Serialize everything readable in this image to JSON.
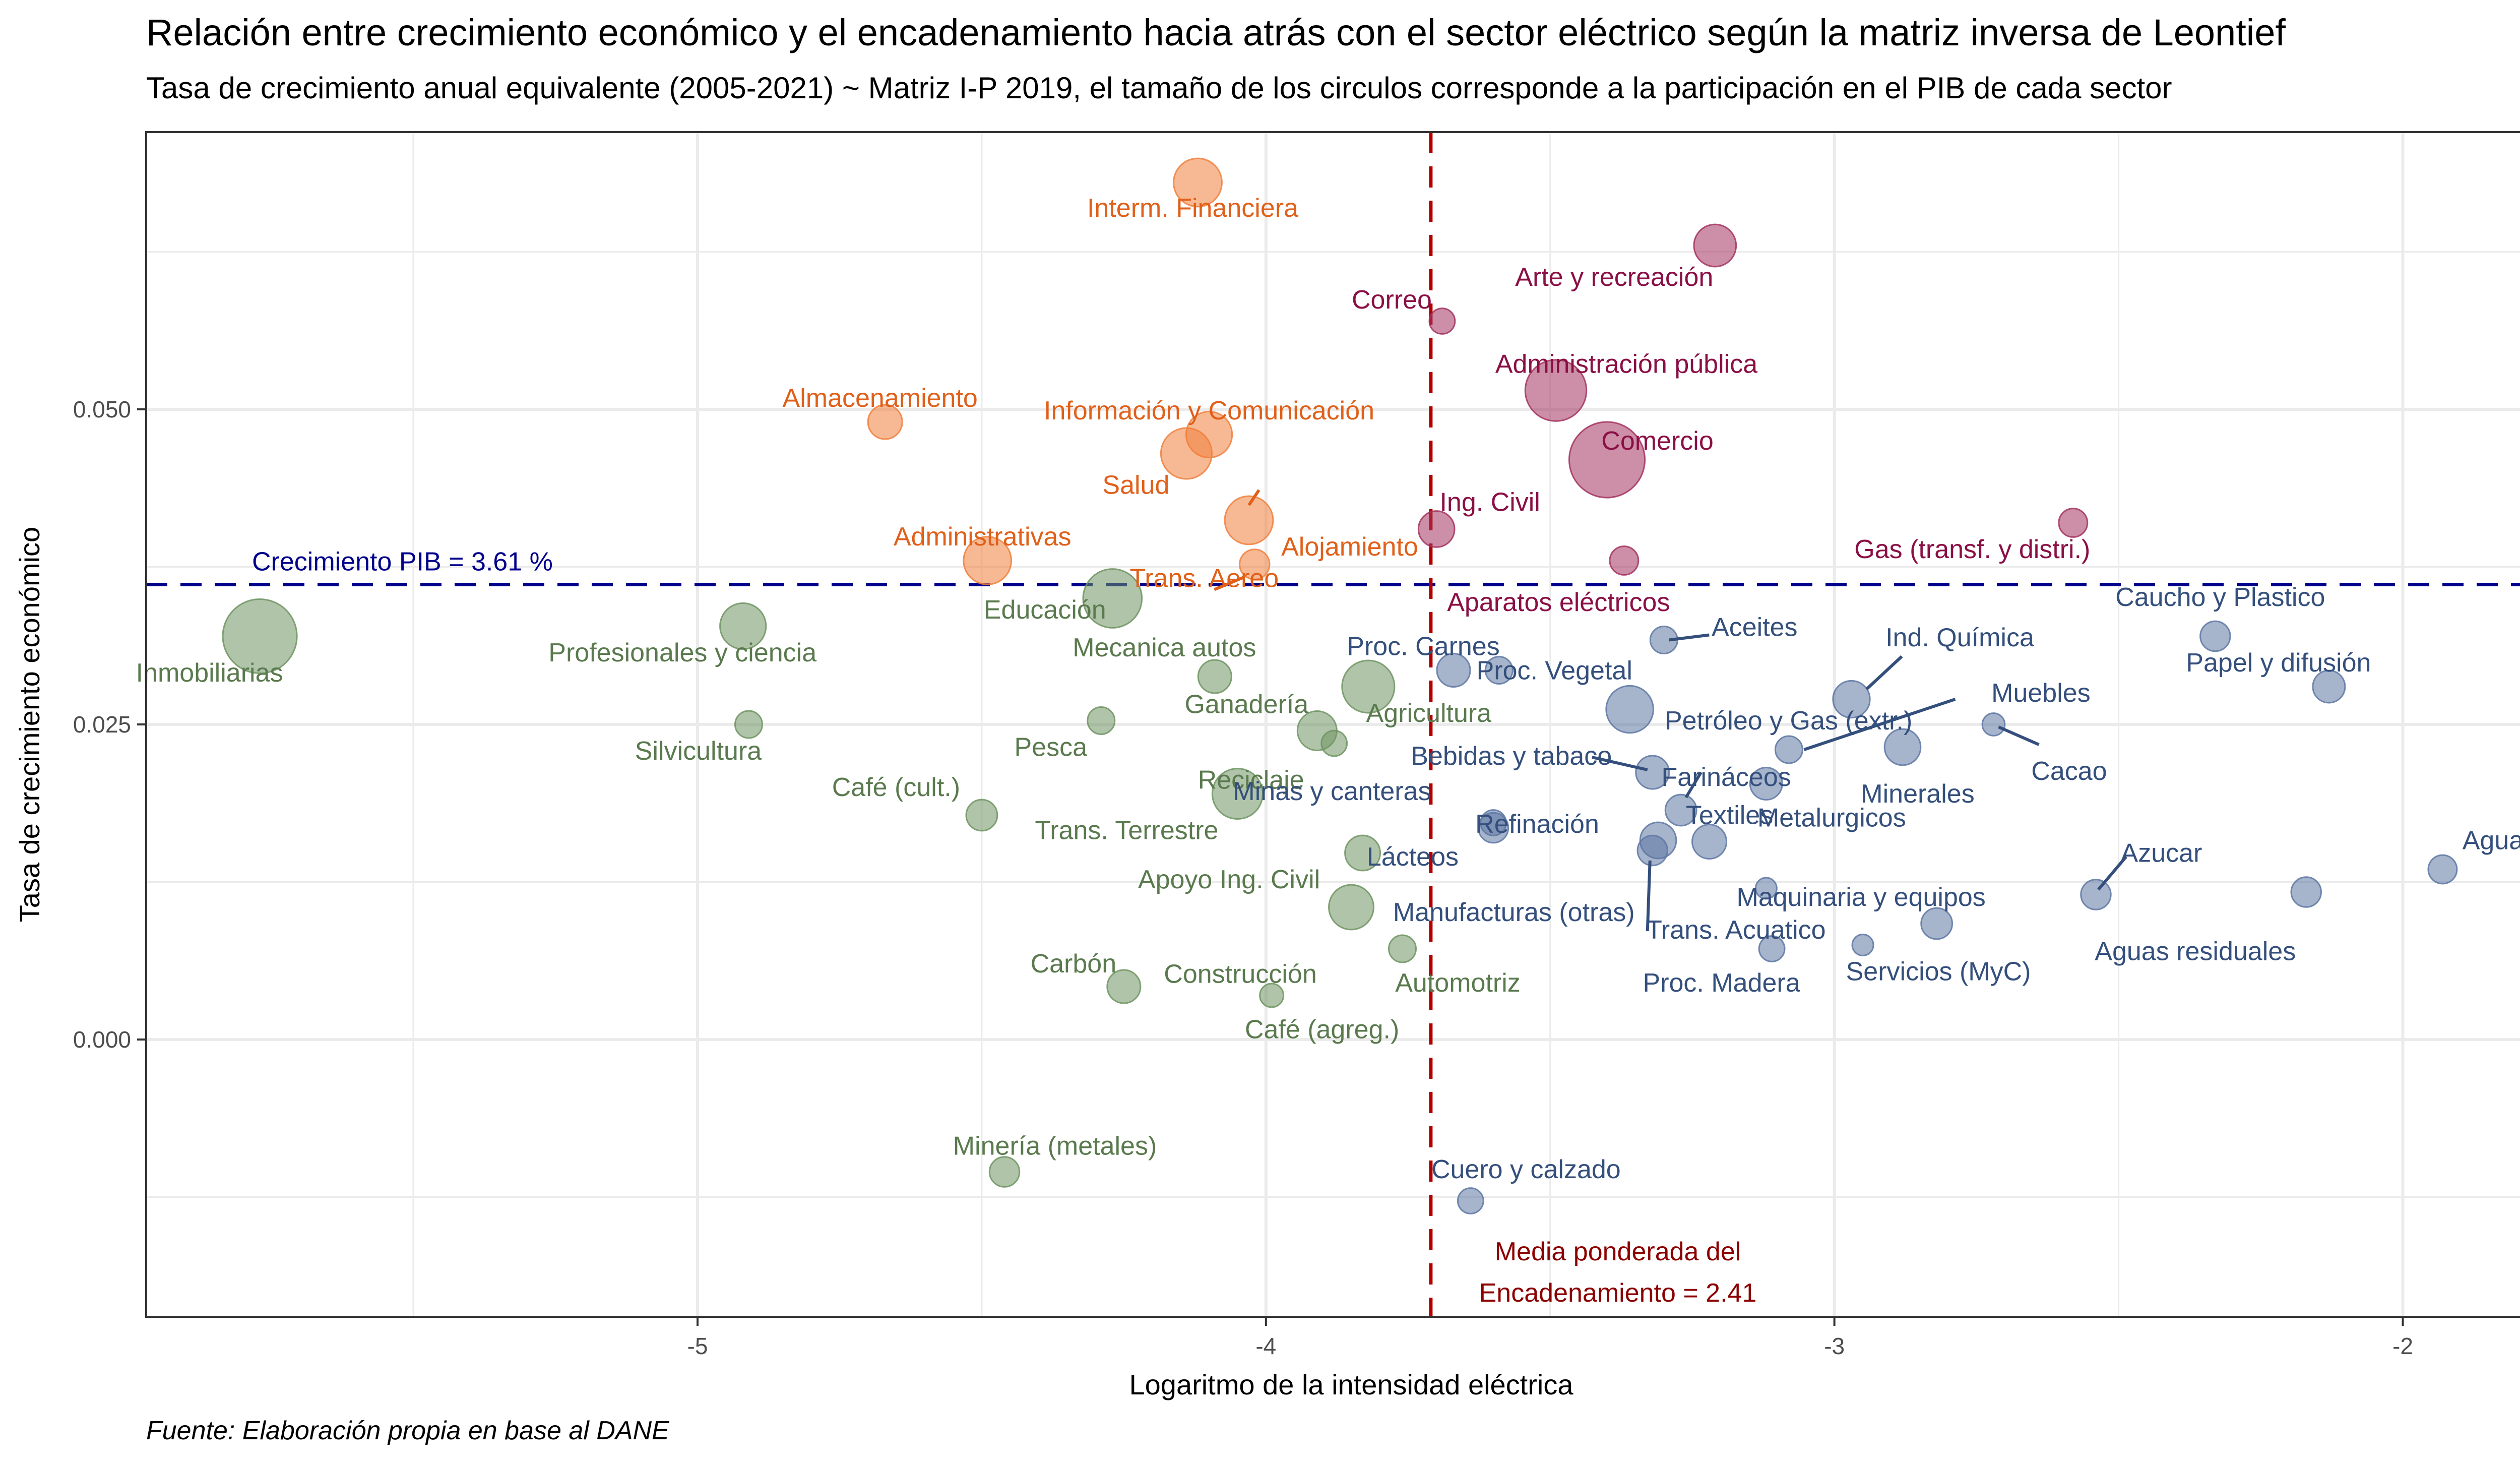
{
  "title": "Relación entre crecimiento económico y el encadenamiento hacia atrás con el sector eléctrico según la matriz inversa de Leontief",
  "subtitle": "Tasa de crecimiento anual equivalente (2005-2021) ~ Matriz I-P 2019, el tamaño de los circulos corresponde a la participación en el PIB de cada sector",
  "caption": "Fuente: Elaboración propia en base al DANE",
  "colors": {
    "orange": "#f07f3c",
    "orange_text": "#e0601a",
    "magenta": "#a3335f",
    "magenta_text": "#8a0f45",
    "green": "#6f9462",
    "green_text": "#5a7a4e",
    "blue": "#5d77a3",
    "blue_text": "#344f7c",
    "hline": "#00008b",
    "vline": "#b20000",
    "vline_text": "#8b0000",
    "grid": "#ebebeb"
  },
  "chart_data": {
    "type": "scatter",
    "title": "Relación entre crecimiento económico y el encadenamiento hacia atrás con el sector eléctrico según la matriz inversa de Leontief",
    "subtitle": "Tasa de crecimiento anual equivalente (2005-2021) ~ Matriz I-P 2019, el tamaño de los circulos corresponde a la participación en el PIB de cada sector",
    "xlabel": "Logaritmo de la intensidad eléctrica",
    "ylabel": "Tasa de crecimiento económico",
    "xlim": [
      -5.97,
      -1.73
    ],
    "ylim": [
      -0.022,
      0.072
    ],
    "x_ticks": [
      -5,
      -4,
      -3,
      -2
    ],
    "x_tick_labels": [
      "-5",
      "-4",
      "-3",
      "-2"
    ],
    "y_ticks": [
      0.0,
      0.025,
      0.05
    ],
    "y_tick_labels": [
      "0.000",
      "0.025",
      "0.050"
    ],
    "grid": true,
    "hline": {
      "y": 0.0361,
      "label": "Crecimiento PIB = 3.61 %"
    },
    "vline": {
      "x": -3.71,
      "label_line1": "Media ponderada del",
      "label_line2": "Encadenamiento = 2.41"
    },
    "points": [
      {
        "label": "Interm. Financiera",
        "x": -4.12,
        "y": 0.068,
        "size": 3.0,
        "group": "orange"
      },
      {
        "label": "Almacenamiento",
        "x": -4.67,
        "y": 0.049,
        "size": 1.0,
        "group": "orange"
      },
      {
        "label": "Información y Comunicación",
        "x": -4.1,
        "y": 0.048,
        "size": 2.6,
        "group": "orange"
      },
      {
        "label": "Salud",
        "x": -4.14,
        "y": 0.0465,
        "size": 3.5,
        "group": "orange"
      },
      {
        "label": "Administrativas",
        "x": -4.49,
        "y": 0.038,
        "size": 2.9,
        "group": "orange"
      },
      {
        "label": "Alojamiento",
        "x": -4.03,
        "y": 0.0412,
        "size": 3.0,
        "group": "orange"
      },
      {
        "label": "Trans. Aereo",
        "x": -4.02,
        "y": 0.0377,
        "size": 0.6,
        "group": "orange"
      },
      {
        "label": "Arte y recreación",
        "x": -3.21,
        "y": 0.063,
        "size": 2.0,
        "group": "magenta"
      },
      {
        "label": "Correo",
        "x": -3.69,
        "y": 0.057,
        "size": 0.3,
        "group": "magenta"
      },
      {
        "label": "Administración pública",
        "x": -3.49,
        "y": 0.0515,
        "size": 5.8,
        "group": "magenta"
      },
      {
        "label": "Comercio",
        "x": -3.4,
        "y": 0.046,
        "size": 10.0,
        "group": "magenta"
      },
      {
        "label": "Ing. Civil",
        "x": -3.7,
        "y": 0.0405,
        "size": 1.2,
        "group": "magenta"
      },
      {
        "label": "Aparatos eléctricos",
        "x": -3.37,
        "y": 0.038,
        "size": 0.5,
        "group": "magenta"
      },
      {
        "label": "Gas (transf. y distri.)",
        "x": -2.58,
        "y": 0.041,
        "size": 0.5,
        "group": "magenta"
      },
      {
        "label": "Inmobiliarias",
        "x": -5.77,
        "y": 0.032,
        "size": 9.5,
        "group": "green"
      },
      {
        "label": "Profesionales y ciencia",
        "x": -4.92,
        "y": 0.0328,
        "size": 2.6,
        "group": "green"
      },
      {
        "label": "Educación",
        "x": -4.27,
        "y": 0.035,
        "size": 5.2,
        "group": "green"
      },
      {
        "label": "Mecanica autos",
        "x": -4.09,
        "y": 0.0288,
        "size": 0.9,
        "group": "green"
      },
      {
        "label": "Silvicultura",
        "x": -4.91,
        "y": 0.025,
        "size": 0.4,
        "group": "green"
      },
      {
        "label": "Pesca",
        "x": -4.29,
        "y": 0.0253,
        "size": 0.4,
        "group": "green"
      },
      {
        "label": "Ganadería",
        "x": -3.91,
        "y": 0.0245,
        "size": 1.6,
        "group": "green"
      },
      {
        "label": "Agricultura",
        "x": -3.82,
        "y": 0.028,
        "size": 3.8,
        "group": "green"
      },
      {
        "label": "Reciclaje",
        "x": -3.88,
        "y": 0.0235,
        "size": 0.3,
        "group": "green"
      },
      {
        "label": "Café (cult.)",
        "x": -4.5,
        "y": 0.0178,
        "size": 0.7,
        "group": "green"
      },
      {
        "label": "Trans. Terrestre",
        "x": -4.05,
        "y": 0.0195,
        "size": 3.4,
        "group": "green"
      },
      {
        "label": "Apoyo Ing. Civil",
        "x": -3.83,
        "y": 0.0148,
        "size": 1.1,
        "group": "green"
      },
      {
        "label": "Construcción",
        "x": -3.85,
        "y": 0.0105,
        "size": 2.4,
        "group": "green"
      },
      {
        "label": "Automotriz",
        "x": -3.76,
        "y": 0.0072,
        "size": 0.4,
        "group": "green"
      },
      {
        "label": "Carbón",
        "x": -4.25,
        "y": 0.0042,
        "size": 0.9,
        "group": "green"
      },
      {
        "label": "Café (agreg.)",
        "x": -3.99,
        "y": 0.0035,
        "size": 0.2,
        "group": "green"
      },
      {
        "label": "Minería (metales)",
        "x": -4.46,
        "y": -0.0105,
        "size": 0.6,
        "group": "green"
      },
      {
        "label": "Proc. Carnes",
        "x": -3.67,
        "y": 0.0293,
        "size": 0.9,
        "group": "blue"
      },
      {
        "label": "Proc. Vegetal",
        "x": -3.59,
        "y": 0.0293,
        "size": 0.4,
        "group": "blue"
      },
      {
        "label": "Aceites",
        "x": -3.3,
        "y": 0.0317,
        "size": 0.4,
        "group": "blue"
      },
      {
        "label": "Ind. Química",
        "x": -2.97,
        "y": 0.027,
        "size": 1.3,
        "group": "blue"
      },
      {
        "label": "Petróleo y Gas (extr.)",
        "x": -3.36,
        "y": 0.0262,
        "size": 2.8,
        "group": "blue"
      },
      {
        "label": "Muebles",
        "x": -3.08,
        "y": 0.023,
        "size": 0.4,
        "group": "blue"
      },
      {
        "label": "Cacao",
        "x": -2.72,
        "y": 0.025,
        "size": 0.15,
        "group": "blue"
      },
      {
        "label": "Minerales",
        "x": -2.88,
        "y": 0.0232,
        "size": 1.2,
        "group": "blue"
      },
      {
        "label": "Caucho y Plastico",
        "x": -2.33,
        "y": 0.032,
        "size": 0.6,
        "group": "blue"
      },
      {
        "label": "Papel y difusión",
        "x": -2.13,
        "y": 0.028,
        "size": 0.8,
        "group": "blue"
      },
      {
        "label": "Bebidas y tabaco",
        "x": -3.32,
        "y": 0.0212,
        "size": 0.9,
        "group": "blue"
      },
      {
        "label": "Farináceos",
        "x": -3.27,
        "y": 0.0182,
        "size": 0.7,
        "group": "blue"
      },
      {
        "label": "Metalurgicos",
        "x": -3.12,
        "y": 0.0203,
        "size": 0.8,
        "group": "blue"
      },
      {
        "label": "Refinación",
        "x": -3.31,
        "y": 0.0158,
        "size": 1.2,
        "group": "blue"
      },
      {
        "label": "Minas y canteras",
        "x": -3.6,
        "y": 0.0172,
        "size": 0.3,
        "group": "blue"
      },
      {
        "label": "Lácteos",
        "x": -3.6,
        "y": 0.0168,
        "size": 0.6,
        "group": "blue"
      },
      {
        "label": "Manufacturas (otras)",
        "x": -3.32,
        "y": 0.015,
        "size": 0.6,
        "group": "blue"
      },
      {
        "label": "Textiles",
        "x": -3.22,
        "y": 0.0157,
        "size": 1.0,
        "group": "blue"
      },
      {
        "label": "Trans. Acuatico",
        "x": -3.12,
        "y": 0.012,
        "size": 0.1,
        "group": "blue"
      },
      {
        "label": "Proc. Madera",
        "x": -3.11,
        "y": 0.0072,
        "size": 0.3,
        "group": "blue"
      },
      {
        "label": "Maquinaria y equipos",
        "x": -2.82,
        "y": 0.0092,
        "size": 0.7,
        "group": "blue"
      },
      {
        "label": "Servicios (MyC)",
        "x": -2.95,
        "y": 0.0075,
        "size": 0.1,
        "group": "blue"
      },
      {
        "label": "Azucar",
        "x": -2.54,
        "y": 0.0115,
        "size": 0.6,
        "group": "blue"
      },
      {
        "label": "Aguas residuales",
        "x": -2.17,
        "y": 0.0117,
        "size": 0.6,
        "group": "blue"
      },
      {
        "label": "Agua",
        "x": -1.93,
        "y": 0.0135,
        "size": 0.5,
        "group": "blue"
      },
      {
        "label": "Cuero y calzado",
        "x": -3.64,
        "y": -0.0128,
        "size": 0.3,
        "group": "blue"
      }
    ]
  }
}
